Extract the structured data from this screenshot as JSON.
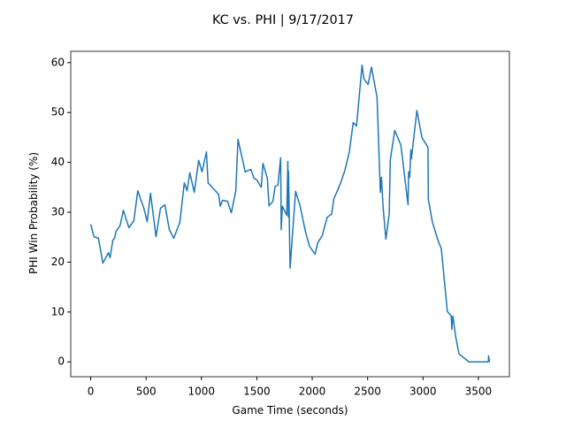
{
  "chart_data": {
    "type": "line",
    "title": "KC vs. PHI | 9/17/2017",
    "x_label": "Game Time (seconds)",
    "y_label": "PHI Win Probability (%)",
    "x": [
      0,
      30,
      70,
      110,
      160,
      175,
      200,
      215,
      230,
      265,
      295,
      345,
      390,
      425,
      480,
      510,
      540,
      590,
      630,
      670,
      710,
      750,
      805,
      845,
      870,
      895,
      935,
      975,
      1005,
      1045,
      1060,
      1100,
      1155,
      1170,
      1190,
      1235,
      1270,
      1310,
      1330,
      1395,
      1445,
      1475,
      1500,
      1540,
      1555,
      1595,
      1610,
      1645,
      1665,
      1690,
      1715,
      1720,
      1730,
      1755,
      1770,
      1780,
      1785,
      1786,
      1800,
      1850,
      1890,
      1940,
      1975,
      2025,
      2050,
      2090,
      2135,
      2175,
      2195,
      2225,
      2255,
      2295,
      2335,
      2370,
      2400,
      2450,
      2465,
      2505,
      2535,
      2585,
      2615,
      2625,
      2640,
      2665,
      2695,
      2705,
      2745,
      2800,
      2865,
      2870,
      2880,
      2890,
      2895,
      2945,
      2990,
      3045,
      3048,
      3085,
      3135,
      3165,
      3220,
      3255,
      3260,
      3270,
      3295,
      3325,
      3415,
      3590,
      3592,
      3600
    ],
    "series": [
      {
        "name": "PHI",
        "color": "#1f77b4",
        "values": [
          27.6,
          25.1,
          24.8,
          19.8,
          21.9,
          20.9,
          24.4,
          24.8,
          26.2,
          27.3,
          30.4,
          26.9,
          28.3,
          34.3,
          30.8,
          28.1,
          33.8,
          25.1,
          30.8,
          31.5,
          26.5,
          24.8,
          28.0,
          35.9,
          34.3,
          37.9,
          34.0,
          40.4,
          38.1,
          42.1,
          35.9,
          34.9,
          33.6,
          31.2,
          32.4,
          32.2,
          29.9,
          34.3,
          44.6,
          38.1,
          38.6,
          36.8,
          36.5,
          35.0,
          39.8,
          36.8,
          31.3,
          32.2,
          35.2,
          35.4,
          40.9,
          26.5,
          31.2,
          30.1,
          29.4,
          40.2,
          29.0,
          38.2,
          18.8,
          34.2,
          31.3,
          26.0,
          23.2,
          21.6,
          23.9,
          25.3,
          29.0,
          29.6,
          32.7,
          34.2,
          35.8,
          38.4,
          42.1,
          48.0,
          47.3,
          59.5,
          56.8,
          55.6,
          59.1,
          53.1,
          34.0,
          37.0,
          31.0,
          24.6,
          29.7,
          40.5,
          46.4,
          43.5,
          31.5,
          38.1,
          37.0,
          42.5,
          40.7,
          50.4,
          45.0,
          43.0,
          32.6,
          28.0,
          24.4,
          22.7,
          10.1,
          9.2,
          6.5,
          9.2,
          5.1,
          1.6,
          0,
          0,
          1.2,
          0
        ]
      }
    ],
    "xlim": [
      -180,
      3780
    ],
    "xticks": [
      0,
      500,
      1000,
      1500,
      2000,
      2500,
      3000,
      3500
    ],
    "ylim": [
      -2.97,
      62.27
    ],
    "yticks": [
      0,
      10,
      20,
      30,
      40,
      50,
      60
    ]
  }
}
